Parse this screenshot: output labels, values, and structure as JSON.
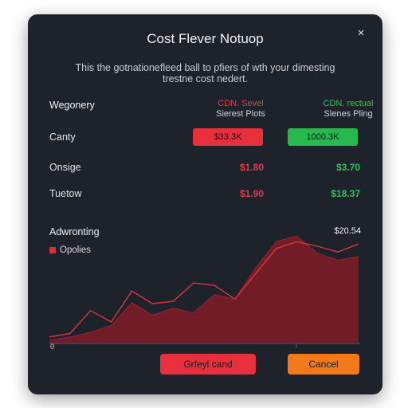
{
  "dialog": {
    "title": "Cost Flever Notuop",
    "close_glyph": "×",
    "description": "This the gotnationefleed ball to pfiers of wth your dimesting trestne cost nedert."
  },
  "table": {
    "header_label": "Wegonery",
    "col_a": {
      "line1": "CDN. Sevel",
      "line2": "Sierest Plots",
      "color": "#e03a47"
    },
    "col_b": {
      "line1": "CDN. rectual",
      "line2": "Slenes Pling",
      "color": "#2fc15a"
    },
    "rows": [
      {
        "label": "Canty",
        "a": "$33.3K",
        "b": "1000.3K"
      },
      {
        "label": "Onsige",
        "a": "$1.80",
        "b": "$3.70"
      },
      {
        "label": "Tuetow",
        "a": "$1.90",
        "b": "$18.37"
      }
    ]
  },
  "chart_data": {
    "type": "area",
    "title": "Adwronting",
    "legend": [
      "Opolies"
    ],
    "peak_label": "$20.54",
    "x_tick_labels": [
      "0"
    ],
    "series": [
      {
        "values": [
          2,
          5,
          9,
          15,
          35,
          24,
          30,
          26,
          42,
          38,
          65,
          88,
          93,
          78,
          72,
          75
        ]
      },
      {
        "values": [
          5,
          8,
          28,
          18,
          45,
          34,
          36,
          52,
          50,
          38,
          60,
          82,
          88,
          84,
          79,
          86
        ]
      }
    ],
    "area_color": "#7a1c27",
    "line_color": "#d8343f"
  },
  "buttons": {
    "primary": "Grfeyl cand",
    "cancel": "Cancel"
  }
}
